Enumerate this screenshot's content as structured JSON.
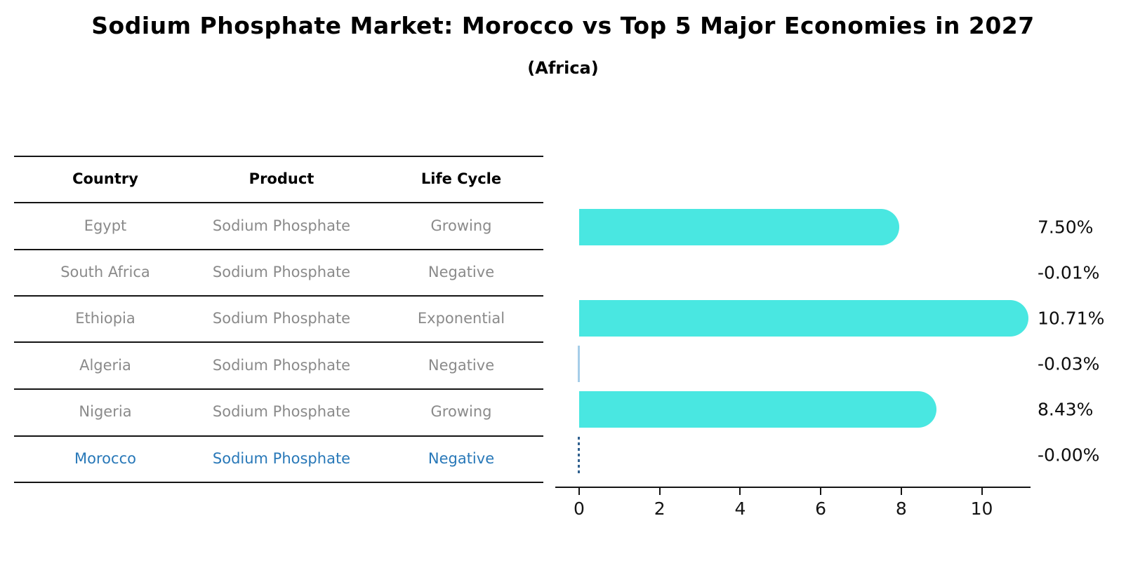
{
  "title": "Sodium Phosphate Market: Morocco vs Top 5 Major Economies in 2027",
  "subtitle": "(Africa)",
  "table": {
    "headers": [
      "Country",
      "Product",
      "Life Cycle"
    ],
    "rows": [
      {
        "country": "Egypt",
        "product": "Sodium Phosphate",
        "life_cycle": "Growing",
        "highlight": false
      },
      {
        "country": "South Africa",
        "product": "Sodium Phosphate",
        "life_cycle": "Negative",
        "highlight": false
      },
      {
        "country": "Ethiopia",
        "product": "Sodium Phosphate",
        "life_cycle": "Exponential",
        "highlight": false
      },
      {
        "country": "Algeria",
        "product": "Sodium Phosphate",
        "life_cycle": "Negative",
        "highlight": false
      },
      {
        "country": "Nigeria",
        "product": "Sodium Phosphate",
        "life_cycle": "Growing",
        "highlight": false
      },
      {
        "country": "Morocco",
        "product": "Sodium Phosphate",
        "life_cycle": "Negative",
        "highlight": true
      }
    ]
  },
  "chart_data": {
    "type": "bar",
    "orientation": "horizontal",
    "categories": [
      "Egypt",
      "South Africa",
      "Ethiopia",
      "Algeria",
      "Nigeria",
      "Morocco"
    ],
    "values": [
      7.5,
      -0.01,
      10.71,
      -0.03,
      8.43,
      -0.0
    ],
    "value_labels": [
      "7.50%",
      "-0.01%",
      "10.71%",
      "-0.03%",
      "8.43%",
      "-0.00%"
    ],
    "marker_styles": [
      "bar",
      "none",
      "bar",
      "thin_line",
      "bar",
      "dashed_line"
    ],
    "xticks": [
      0,
      2,
      4,
      6,
      8,
      10
    ],
    "xlim": [
      -0.6,
      11.2
    ],
    "grid": false,
    "legend": false,
    "highlight_country": "Morocco",
    "colors": {
      "bar": "#49e7e1",
      "thin_line": "#a6cde8",
      "dashed_line": "#31618f",
      "highlight_text": "#2878b8",
      "axis": "#141414",
      "table_text": "#8a8a8a",
      "value_label_text": "#0d0d0d"
    }
  }
}
